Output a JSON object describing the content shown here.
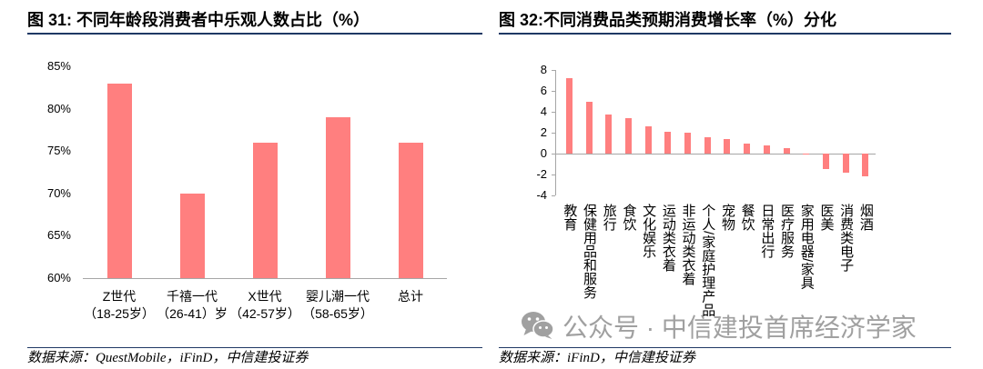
{
  "chart_data": [
    {
      "type": "bar",
      "title": "图 31: 不同年龄段消费者中乐观人数占比（%）",
      "categories": [
        "Z世代\n（18-25岁）",
        "千禧一代\n（26-41）岁",
        "X世代\n（42-57岁）",
        "婴儿潮一代\n（58-65岁）",
        "总计"
      ],
      "values": [
        83,
        70,
        76,
        79,
        76
      ],
      "ylim": [
        60,
        85
      ],
      "yticks": [
        85,
        80,
        75,
        70,
        65,
        60
      ],
      "ytick_labels": [
        "85%",
        "80%",
        "75%",
        "70%",
        "65%",
        "60%"
      ],
      "grid": false,
      "bar_color": "#FF7F7F",
      "source": "数据来源：QuestMobile，iFinD，中信建投证券"
    },
    {
      "type": "bar",
      "title": "图 32:不同消费品类预期消费增长率（%）分化",
      "categories": [
        "教育",
        "保健用品和服务",
        "旅行",
        "食饮",
        "文化娱乐",
        "运动类衣着",
        "非运动类衣着",
        "个人/家庭护理产品",
        "宠物",
        "餐饮",
        "日常出行",
        "医疗服务",
        "家用电器/家具",
        "医美",
        "消费类电子",
        "烟酒"
      ],
      "values": [
        7.2,
        5.0,
        3.7,
        3.4,
        2.6,
        2.1,
        2.0,
        1.6,
        1.4,
        1.0,
        0.8,
        0.5,
        -0.1,
        -1.5,
        -1.8,
        -2.2
      ],
      "ylim": [
        -4,
        8
      ],
      "yticks": [
        8,
        6,
        4,
        2,
        0,
        -2,
        -4
      ],
      "ytick_labels": [
        "8",
        "6",
        "4",
        "2",
        "0",
        "-2",
        "-4"
      ],
      "grid": false,
      "bar_color": "#FF7F7F",
      "source": "数据来源：iFinD，中信建投证券"
    }
  ],
  "watermark": {
    "icon": "wechat-icon",
    "text": "公众号 · 中信建投首席经济学家",
    "color": "#A0A0A0"
  },
  "colors": {
    "title_rule": "#1F3864",
    "axis_line": "#A6A6A6"
  }
}
